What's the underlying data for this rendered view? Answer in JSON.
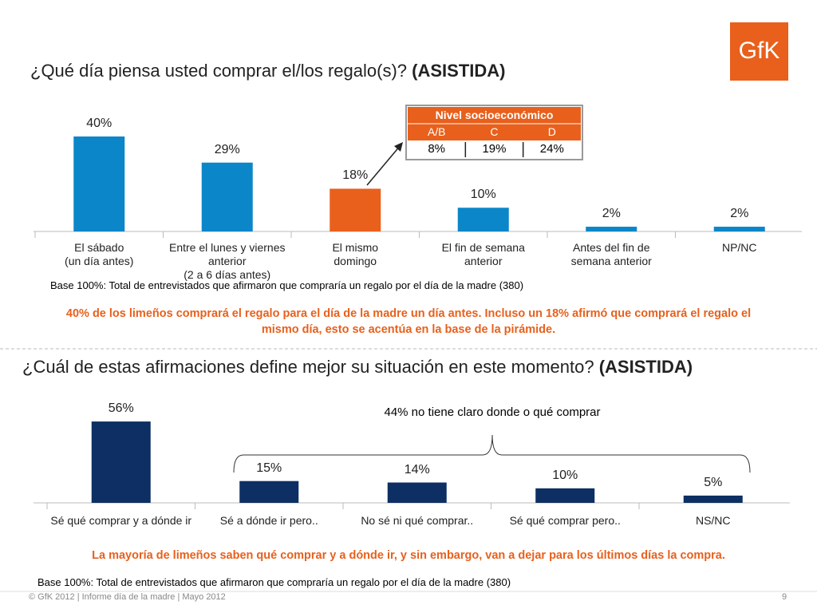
{
  "logo": "GfK",
  "chart_data": [
    {
      "type": "bar",
      "title": "¿Qué día piensa usted comprar el/los regalo(s)?",
      "title_bold": "(ASISTIDA)",
      "categories": [
        "El sábado\n(un día antes)",
        "Entre el lunes y viernes anterior\n(2 a 6 días antes)",
        "El mismo\ndomingo",
        "El fin de semana\nanterior",
        "Antes del fin de\nsemana anterior",
        "NP/NC"
      ],
      "values": [
        40,
        29,
        18,
        10,
        2,
        2
      ],
      "value_labels": [
        "40%",
        "29%",
        "18%",
        "10%",
        "2%",
        "2%"
      ],
      "colors": [
        "#0b86c8",
        "#0b86c8",
        "#e8601c",
        "#0b86c8",
        "#0b86c8",
        "#0b86c8"
      ],
      "note": "Base 100%:  Total de entrevistados que afirmaron que compraría un regalo por el día de la madre (380)",
      "summary": "40% de los limeños comprará el regalo para el día de la madre un día antes. Incluso un 18% afirmó que comprará el regalo el mismo día, esto se acentúa en la base de la pirámide."
    },
    {
      "type": "bar",
      "title": "¿Cuál de estas afirmaciones define mejor su situación en este momento?",
      "title_bold": "(ASISTIDA)",
      "categories": [
        "Sé qué comprar y a dónde ir",
        "Sé a dónde ir pero..",
        "No sé ni qué comprar..",
        "Sé qué comprar pero..",
        "NS/NC"
      ],
      "values": [
        56,
        15,
        14,
        10,
        5
      ],
      "value_labels": [
        "56%",
        "15%",
        "14%",
        "10%",
        "5%"
      ],
      "colors": [
        "#0d2f63",
        "#0d2f63",
        "#0d2f63",
        "#0d2f63",
        "#0d2f63"
      ],
      "annotation": "44% no tiene claro donde o qué comprar",
      "summary": "La mayoría de limeños saben qué comprar y a dónde ir, y sin embargo, van a dejar para los últimos días la compra.",
      "note": "Base 100%:  Total de entrevistados que afirmaron que compraría un regalo por el día de la madre (380)"
    }
  ],
  "table": {
    "title": "Nivel socioeconómico",
    "header": [
      "A/B",
      "C",
      "D"
    ],
    "rows": [
      [
        "8%",
        "19%",
        "24%"
      ]
    ]
  },
  "footer": "© GfK 2012 | Informe día de la madre | Mayo 2012",
  "page_number": "9"
}
